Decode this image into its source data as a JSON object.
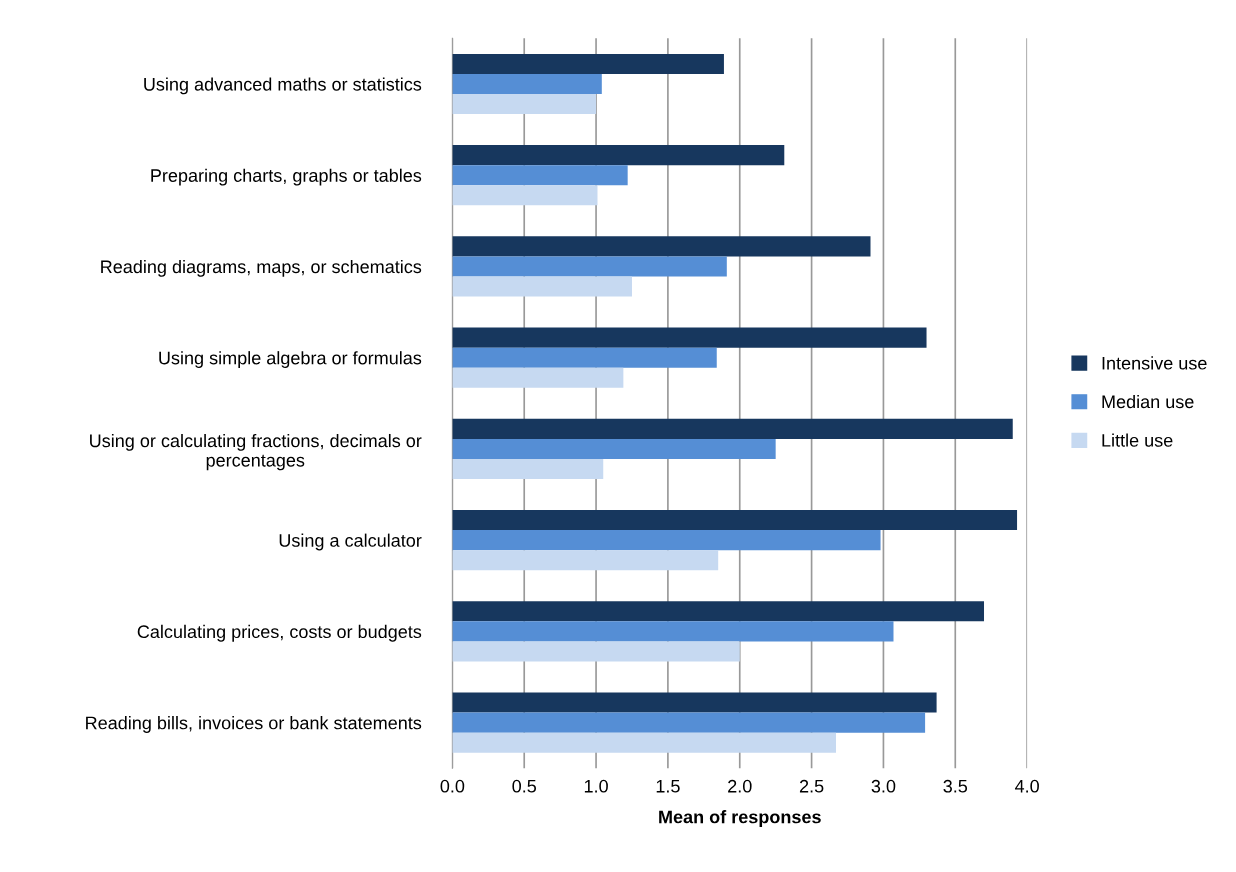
{
  "chart_data": {
    "type": "bar",
    "orientation": "horizontal",
    "xlabel": "Mean of responses",
    "categories": [
      "Using advanced maths or statistics",
      "Preparing charts, graphs or tables",
      "Reading diagrams, maps, or schematics",
      "Using simple algebra or formulas",
      "Using or calculating fractions, decimals or percentages",
      "Using a calculator",
      "Calculating prices, costs or budgets",
      "Reading bills, invoices or bank statements"
    ],
    "series": [
      {
        "name": "Intensive use",
        "color": "#17375e",
        "values": [
          1.89,
          2.31,
          2.91,
          3.3,
          3.9,
          3.93,
          3.7,
          3.37
        ]
      },
      {
        "name": "Median use",
        "color": "#558ed5",
        "values": [
          1.04,
          1.22,
          1.91,
          1.84,
          2.25,
          2.98,
          3.07,
          3.29
        ]
      },
      {
        "name": "Little use",
        "color": "#c6d9f1",
        "values": [
          1.0,
          1.01,
          1.25,
          1.19,
          1.05,
          1.85,
          2.0,
          2.67
        ]
      }
    ],
    "xlim": [
      0,
      4
    ],
    "xticks": [
      {
        "value": 0,
        "label": "0.0"
      },
      {
        "value": 0.5,
        "label": "0.5"
      },
      {
        "value": 1,
        "label": "1.0"
      },
      {
        "value": 1.5,
        "label": "1.5"
      },
      {
        "value": 2,
        "label": "2.0"
      },
      {
        "value": 2.5,
        "label": "2.5"
      },
      {
        "value": 3,
        "label": "3.0"
      },
      {
        "value": 3.5,
        "label": "3.5"
      },
      {
        "value": 4,
        "label": "4.0"
      }
    ],
    "grid": "x",
    "legend": "right"
  }
}
